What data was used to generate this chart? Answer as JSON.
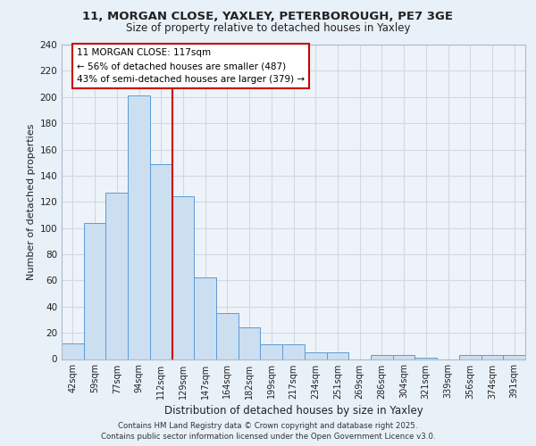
{
  "title_line1": "11, MORGAN CLOSE, YAXLEY, PETERBOROUGH, PE7 3GE",
  "title_line2": "Size of property relative to detached houses in Yaxley",
  "xlabel": "Distribution of detached houses by size in Yaxley",
  "ylabel": "Number of detached properties",
  "bin_labels": [
    "42sqm",
    "59sqm",
    "77sqm",
    "94sqm",
    "112sqm",
    "129sqm",
    "147sqm",
    "164sqm",
    "182sqm",
    "199sqm",
    "217sqm",
    "234sqm",
    "251sqm",
    "269sqm",
    "286sqm",
    "304sqm",
    "321sqm",
    "339sqm",
    "356sqm",
    "374sqm",
    "391sqm"
  ],
  "bar_values": [
    12,
    104,
    127,
    201,
    149,
    124,
    62,
    35,
    24,
    11,
    11,
    5,
    5,
    0,
    3,
    3,
    1,
    0,
    3,
    3,
    3
  ],
  "bar_color": "#ccdff0",
  "bar_edge_color": "#5b9bd5",
  "grid_color": "#d0d8e4",
  "annotation_text": "11 MORGAN CLOSE: 117sqm\n← 56% of detached houses are smaller (487)\n43% of semi-detached houses are larger (379) →",
  "annotation_box_color": "#ffffff",
  "annotation_box_edge": "#cc0000",
  "red_line_color": "#cc0000",
  "ylim": [
    0,
    240
  ],
  "footer": "Contains HM Land Registry data © Crown copyright and database right 2025.\nContains public sector information licensed under the Open Government Licence v3.0.",
  "bg_color": "#e8f0f8",
  "plot_bg_color": "#eef3f9",
  "title_fontsize": 9.5,
  "subtitle_fontsize": 8.5,
  "ylabel_text": "Number of detached properties"
}
